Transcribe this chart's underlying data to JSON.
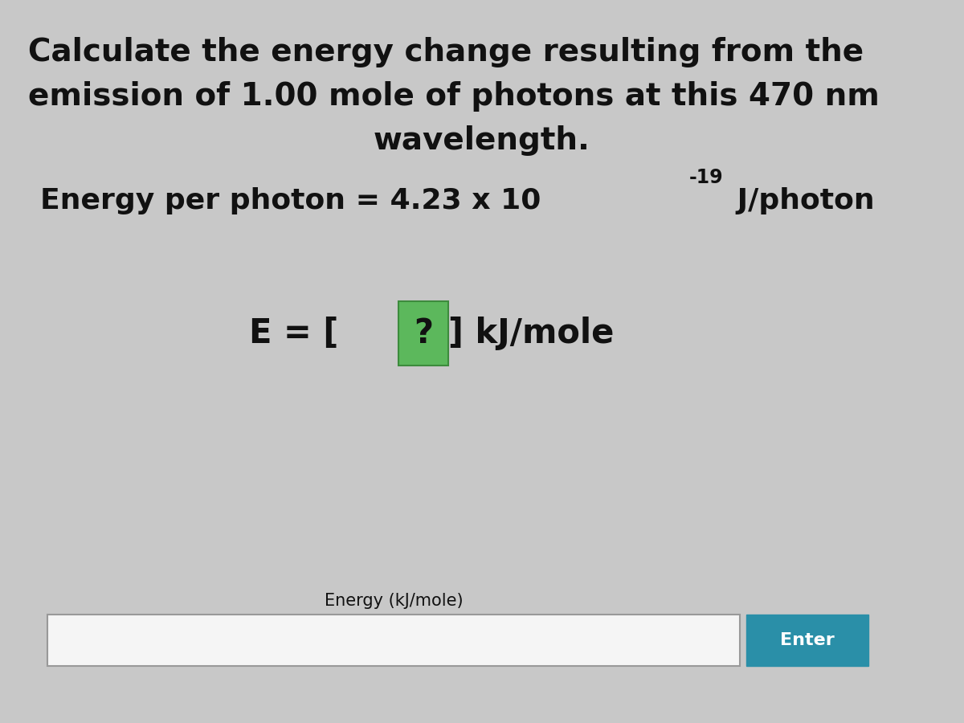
{
  "background_color": "#c8c8c8",
  "title_line1": "Calculate the energy change resulting from the",
  "title_line2": "emission of 1.00 mole of photons at this 470 nm",
  "title_line3": "wavelength.",
  "energy_main": "Energy per photon = 4.23 x 10",
  "energy_exp": "-19",
  "energy_unit": " J/photon",
  "eq_prefix": "E = [",
  "eq_q": "?",
  "eq_suffix": "] kJ/mole",
  "input_label": "Energy (kJ/mole)",
  "button_text": "Enter",
  "button_color": "#2a8fa8",
  "box_facecolor": "#f5f5f5",
  "box_edgecolor": "#999999",
  "text_color": "#111111",
  "question_box_color": "#5cb85c",
  "question_box_edge": "#3d8b3d",
  "title_fontsize": 28,
  "body_fontsize": 26,
  "eq_fontsize": 30,
  "sup_fontsize": 17,
  "label_fontsize": 15,
  "button_fontsize": 16
}
